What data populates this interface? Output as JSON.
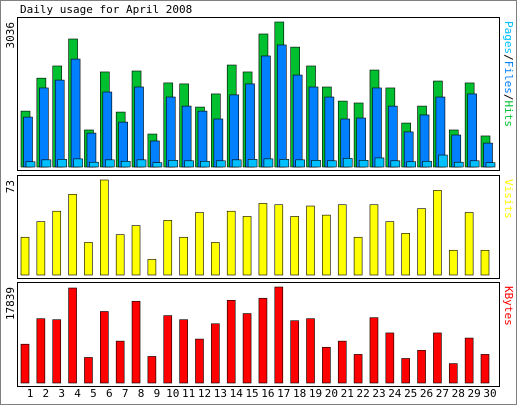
{
  "title": "Daily usage for April 2008",
  "chart_data": [
    {
      "type": "bar",
      "ylim": [
        0,
        3036
      ],
      "yticks": [
        3036
      ],
      "label_separator": "/",
      "series": [
        {
          "name": "Hits",
          "color": "#00c030",
          "values": [
            1170,
            1860,
            2115,
            2680,
            775,
            1990,
            1150,
            2010,
            690,
            1760,
            1740,
            1255,
            1530,
            2135,
            1990,
            2785,
            3036,
            2510,
            2115,
            1675,
            1380,
            1340,
            2030,
            1655,
            920,
            1275,
            1800,
            775,
            1760,
            650
          ]
        },
        {
          "name": "Files",
          "color": "#0080ff",
          "values": [
            1045,
            1655,
            1820,
            2260,
            710,
            1570,
            940,
            1675,
            545,
            1465,
            1275,
            1170,
            1005,
            1510,
            1740,
            2325,
            2555,
            1925,
            1675,
            1465,
            1005,
            1025,
            1655,
            1275,
            735,
            1090,
            1465,
            670,
            1530,
            500
          ]
        },
        {
          "name": "Pages",
          "color": "#00c0ff",
          "values": [
            110,
            150,
            160,
            170,
            100,
            150,
            120,
            150,
            90,
            140,
            130,
            120,
            130,
            150,
            160,
            170,
            160,
            150,
            140,
            130,
            180,
            140,
            190,
            130,
            110,
            120,
            250,
            100,
            130,
            90
          ]
        }
      ]
    },
    {
      "type": "bar",
      "ylim": [
        0,
        73
      ],
      "yticks": [
        73
      ],
      "series": [
        {
          "name": "Visits",
          "color": "#ffff00",
          "values": [
            29,
            41,
            49,
            62,
            25,
            73,
            31,
            38,
            12,
            42,
            29,
            48,
            25,
            49,
            45,
            55,
            54,
            45,
            53,
            46,
            54,
            29,
            54,
            41,
            32,
            51,
            65,
            19,
            48,
            19
          ]
        }
      ]
    },
    {
      "type": "bar",
      "ylim": [
        0,
        17839
      ],
      "yticks": [
        17839
      ],
      "categories": [
        "1",
        "2",
        "3",
        "4",
        "5",
        "6",
        "7",
        "8",
        "9",
        "10",
        "11",
        "12",
        "13",
        "14",
        "15",
        "16",
        "17",
        "18",
        "19",
        "20",
        "21",
        "22",
        "23",
        "24",
        "25",
        "26",
        "27",
        "28",
        "29",
        "30"
      ],
      "category_colors": [
        "#000080",
        "#000080",
        "#000080",
        "#000080",
        "#00a000",
        "#00a000",
        "#000080",
        "#000080",
        "#000080",
        "#000080",
        "#000080",
        "#00a000",
        "#00a000",
        "#000080",
        "#000080",
        "#000080",
        "#000080",
        "#000080",
        "#00a000",
        "#00a000",
        "#000080",
        "#000080",
        "#000080",
        "#000080",
        "#000080",
        "#00a000",
        "#00a000",
        "#000080",
        "#000080",
        "#000080"
      ],
      "series": [
        {
          "name": "KBytes",
          "color": "#ff0000",
          "values": [
            7210,
            11955,
            11765,
            17650,
            4745,
            13285,
            7780,
            15180,
            4935,
            12525,
            11765,
            8160,
            11005,
            15370,
            12905,
            15750,
            17839,
            11575,
            11955,
            6640,
            7780,
            5315,
            12145,
            9300,
            4555,
            6070,
            9300,
            3605,
            8350,
            5315
          ]
        }
      ]
    }
  ]
}
